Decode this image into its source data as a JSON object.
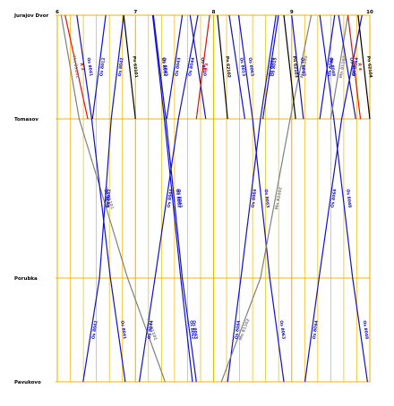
{
  "hours": [
    "6",
    "7",
    "8",
    "9",
    "10"
  ],
  "stations": [
    {
      "name": "Jurajov Dvor",
      "km": 0
    },
    {
      "name": "Tomasov",
      "km": 7
    },
    {
      "name": "Porubka",
      "km": 17
    },
    {
      "name": "Pavukovo",
      "km": 24
    }
  ],
  "colors": {
    "grid": "#f2b400",
    "station_line": "#f2b400",
    "Os": "#1010d0",
    "Pn": "#000000",
    "Mn": "#808080",
    "R": "#e01010"
  },
  "trains": [
    {
      "label": "R 2",
      "type": "R",
      "times": [
        6.1,
        6.39,
        null,
        null
      ]
    },
    {
      "label": "Mn 81101",
      "type": "Mn",
      "times": [
        6.05,
        6.28,
        6.9,
        7.38
      ]
    },
    {
      "label": "Os 8041",
      "type": "Os",
      "times": [
        6.25,
        6.44,
        6.68,
        6.87
      ]
    },
    {
      "label": "Os 8042",
      "type": "Os",
      "times": [
        6.85,
        6.69,
        6.54,
        6.33
      ]
    },
    {
      "label": "Os 8012",
      "type": "Os",
      "times": [
        6.62,
        6.45,
        null,
        null
      ]
    },
    {
      "label": "Pn 62101",
      "type": "Pn",
      "times": [
        6.85,
        7.0,
        null,
        null
      ]
    },
    {
      "label": "Os 8043",
      "type": "Os",
      "times": [
        7.23,
        7.39,
        7.6,
        7.78
      ]
    },
    {
      "label": "Os 8044",
      "type": "Os",
      "times": [
        7.8,
        7.55,
        7.25,
        7.05
      ]
    },
    {
      "label": "Os 8062",
      "type": "Os",
      "times": [
        7.22,
        7.37,
        7.58,
        7.73
      ]
    },
    {
      "label": "Os 8043",
      "type": "Os",
      "times": [
        7.6,
        7.4,
        null,
        null
      ]
    },
    {
      "label": "Os 8020",
      "type": "Os",
      "times": [
        7.7,
        7.9,
        null,
        null
      ]
    },
    {
      "label": "R 3",
      "type": "R",
      "times": [
        7.95,
        7.78,
        null,
        null
      ]
    },
    {
      "label": "Pn 62102",
      "type": "Pn",
      "times": [
        8.05,
        8.18,
        null,
        null
      ]
    },
    {
      "label": "Os 8063",
      "type": "Os",
      "times": [
        8.32,
        8.5,
        8.72,
        8.9
      ]
    },
    {
      "label": "Os 8013",
      "type": "Os",
      "times": [
        8.2,
        8.4,
        null,
        null
      ]
    },
    {
      "label": "Os 8015",
      "type": "Os",
      "times": [
        8.83,
        8.63,
        null,
        null
      ]
    },
    {
      "label": "Os 8064",
      "type": "Os",
      "times": [
        8.8,
        8.6,
        8.35,
        8.18
      ]
    },
    {
      "label": "Mn 81102",
      "type": "Mn",
      "times": [
        9.25,
        8.98,
        8.6,
        8.1
      ]
    },
    {
      "label": "Pn 62103",
      "type": "Pn",
      "times": [
        8.9,
        9.05,
        null,
        null
      ]
    },
    {
      "label": "Os 8045",
      "type": "Os",
      "times": [
        9.0,
        9.15,
        null,
        null
      ]
    },
    {
      "label": "Os 8048",
      "type": "Os",
      "times": [
        9.36,
        9.54,
        9.78,
        9.97
      ]
    },
    {
      "label": "Os 8064",
      "type": "Os",
      "times": [
        9.9,
        9.64,
        9.35,
        9.17
      ]
    },
    {
      "label": "Os 8046",
      "type": "Os",
      "times": [
        9.55,
        9.36,
        null,
        null
      ]
    },
    {
      "label": "Mn 81103",
      "type": "Mn",
      "times": [
        9.72,
        9.5,
        null,
        null
      ]
    },
    {
      "label": "Os 8020",
      "type": "Os",
      "times": [
        9.6,
        9.82,
        null,
        null
      ]
    },
    {
      "label": "R 4",
      "type": "R",
      "times": [
        9.72,
        9.88,
        null,
        null
      ]
    },
    {
      "label": "Pn 62104",
      "type": "Pn",
      "times": [
        9.85,
        10.0,
        null,
        null
      ]
    }
  ]
}
